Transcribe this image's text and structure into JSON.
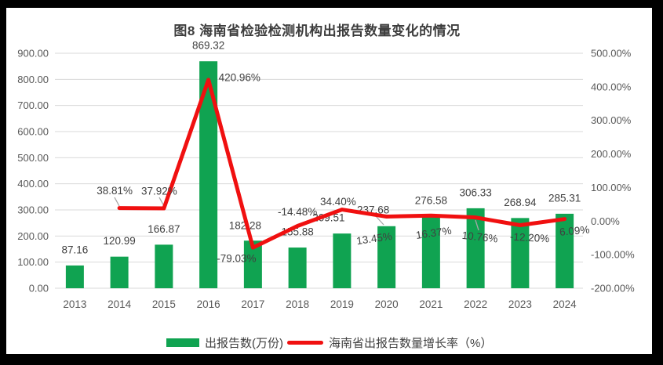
{
  "title": "图8 海南省检验检测机构出报告数量变化的情况",
  "colors": {
    "bar": "#10A351",
    "line": "#F01010",
    "grid": "#D9D9D9",
    "axis_text": "#595959",
    "label_text": "#404040",
    "leader": "#A6A6A6",
    "background": "#FFFFFF",
    "frame": "#000000"
  },
  "chart_data": {
    "type": "bar",
    "subtype": "combo-bar-line-dual-axis",
    "title": "图8 海南省检验检测机构出报告数量变化的情况",
    "categories": [
      "2013",
      "2014",
      "2015",
      "2016",
      "2017",
      "2018",
      "2019",
      "2020",
      "2021",
      "2022",
      "2023",
      "2024"
    ],
    "series": [
      {
        "name": "出报告数(万份)",
        "type": "bar",
        "axis": "left",
        "color": "#10A351",
        "values": [
          87.16,
          120.99,
          166.87,
          869.32,
          182.28,
          155.88,
          209.51,
          237.68,
          276.58,
          306.33,
          268.94,
          285.31
        ],
        "labels": [
          "87.16",
          "120.99",
          "166.87",
          "869.32",
          "182.28",
          "155.88",
          "209.51",
          "237.68",
          "276.58",
          "306.33",
          "268.94",
          "285.31"
        ]
      },
      {
        "name": "海南省出报告数量增长率（%）",
        "type": "line",
        "axis": "right",
        "color": "#F01010",
        "values": [
          null,
          38.81,
          37.92,
          420.96,
          -79.03,
          -14.48,
          34.4,
          13.45,
          16.37,
          10.76,
          -12.2,
          6.09
        ],
        "labels": [
          null,
          "38.81%",
          "37.92%",
          "420.96%",
          "-79.03%",
          "-14.48%",
          "34.40%",
          "13.45%",
          "16.37%",
          "10.76%",
          "-12.20%",
          "6.09%"
        ]
      }
    ],
    "left_axis": {
      "min": 0,
      "max": 900,
      "step": 100,
      "tick_labels": [
        "0.00",
        "100.00",
        "200.00",
        "300.00",
        "400.00",
        "500.00",
        "600.00",
        "700.00",
        "800.00",
        "900.00"
      ]
    },
    "right_axis": {
      "min": -200,
      "max": 500,
      "step": 100,
      "tick_labels": [
        "-200.00%",
        "-100.00%",
        "0.00%",
        "100.00%",
        "200.00%",
        "300.00%",
        "400.00%",
        "500.00%"
      ]
    },
    "grid": true,
    "legend_position": "bottom"
  }
}
